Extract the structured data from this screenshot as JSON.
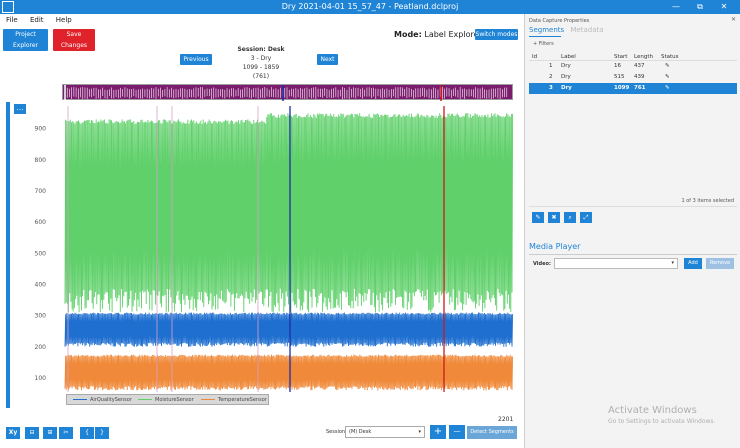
{
  "window": {
    "title": "Dry 2021-04-01 15_57_47 - Peatland.dclproj",
    "minimize": "—",
    "restore": "⧉",
    "close": "✕"
  },
  "menu": [
    "File",
    "Edit",
    "Help"
  ],
  "toolbar": {
    "project_explorer": "Project Explorer",
    "save_changes": "Save Changes",
    "mode_label": "Mode:",
    "mode_value": "Label Explorer",
    "switch_modes": "Switch modes"
  },
  "session_nav": {
    "previous": "Previous",
    "next": "Next",
    "session_title": "Session: Desk",
    "segment": "3 - Dry",
    "range": "1099 - 1859 (761)"
  },
  "chart_menu": "…",
  "chart_data": {
    "type": "line",
    "yticks": [
      100,
      200,
      300,
      400,
      500,
      600,
      700,
      800,
      900
    ],
    "ylim": [
      55,
      960
    ],
    "series": [
      {
        "name": "AirQualitySensor",
        "color": "#1f6fd0",
        "low": 200,
        "high": 310
      },
      {
        "name": "MoistureSensor",
        "color": "#5fd06a",
        "low": 310,
        "high": 950
      },
      {
        "name": "TemperatureSensor",
        "color": "#f08a3a",
        "low": 60,
        "high": 175
      }
    ],
    "grid": false,
    "legend": "bottom-left"
  },
  "sample_count": "2201",
  "bottom": {
    "session_label": "Session:",
    "session_value": "(M) Desk",
    "detect_segments": "Detect Segments",
    "tools": [
      "Xy",
      "⊟",
      "⊞",
      "✂",
      "{",
      "}"
    ],
    "plus": "+",
    "minus": "—"
  },
  "right_panel": {
    "header": "Data Capture Properties",
    "close": "✕",
    "tab_segments": "Segments",
    "tab_metadata": "Metadata",
    "filters": "+ Filters",
    "columns": [
      "Id",
      "Label",
      "Start",
      "Length",
      "Status"
    ],
    "rows": [
      {
        "id": "1",
        "label": "Dry",
        "start": "16",
        "length": "437",
        "status": "✎"
      },
      {
        "id": "2",
        "label": "Dry",
        "start": "515",
        "length": "439",
        "status": "✎"
      },
      {
        "id": "3",
        "label": "Dry",
        "start": "1099",
        "length": "761",
        "status": "✎"
      }
    ],
    "selected_info": "1 of 3 items selected",
    "tool_icons": [
      "✎",
      "✖",
      "⌕",
      "⤢"
    ],
    "media_title": "Media Player",
    "video_label": "Video:",
    "add": "Add",
    "remove": "Remove"
  },
  "watermark": {
    "line1": "Activate Windows",
    "line2": "Go to Settings to activate Windows."
  },
  "colors": {
    "accent": "#1f84d6",
    "danger": "#e0222a",
    "overview": "#7b1c6e"
  }
}
